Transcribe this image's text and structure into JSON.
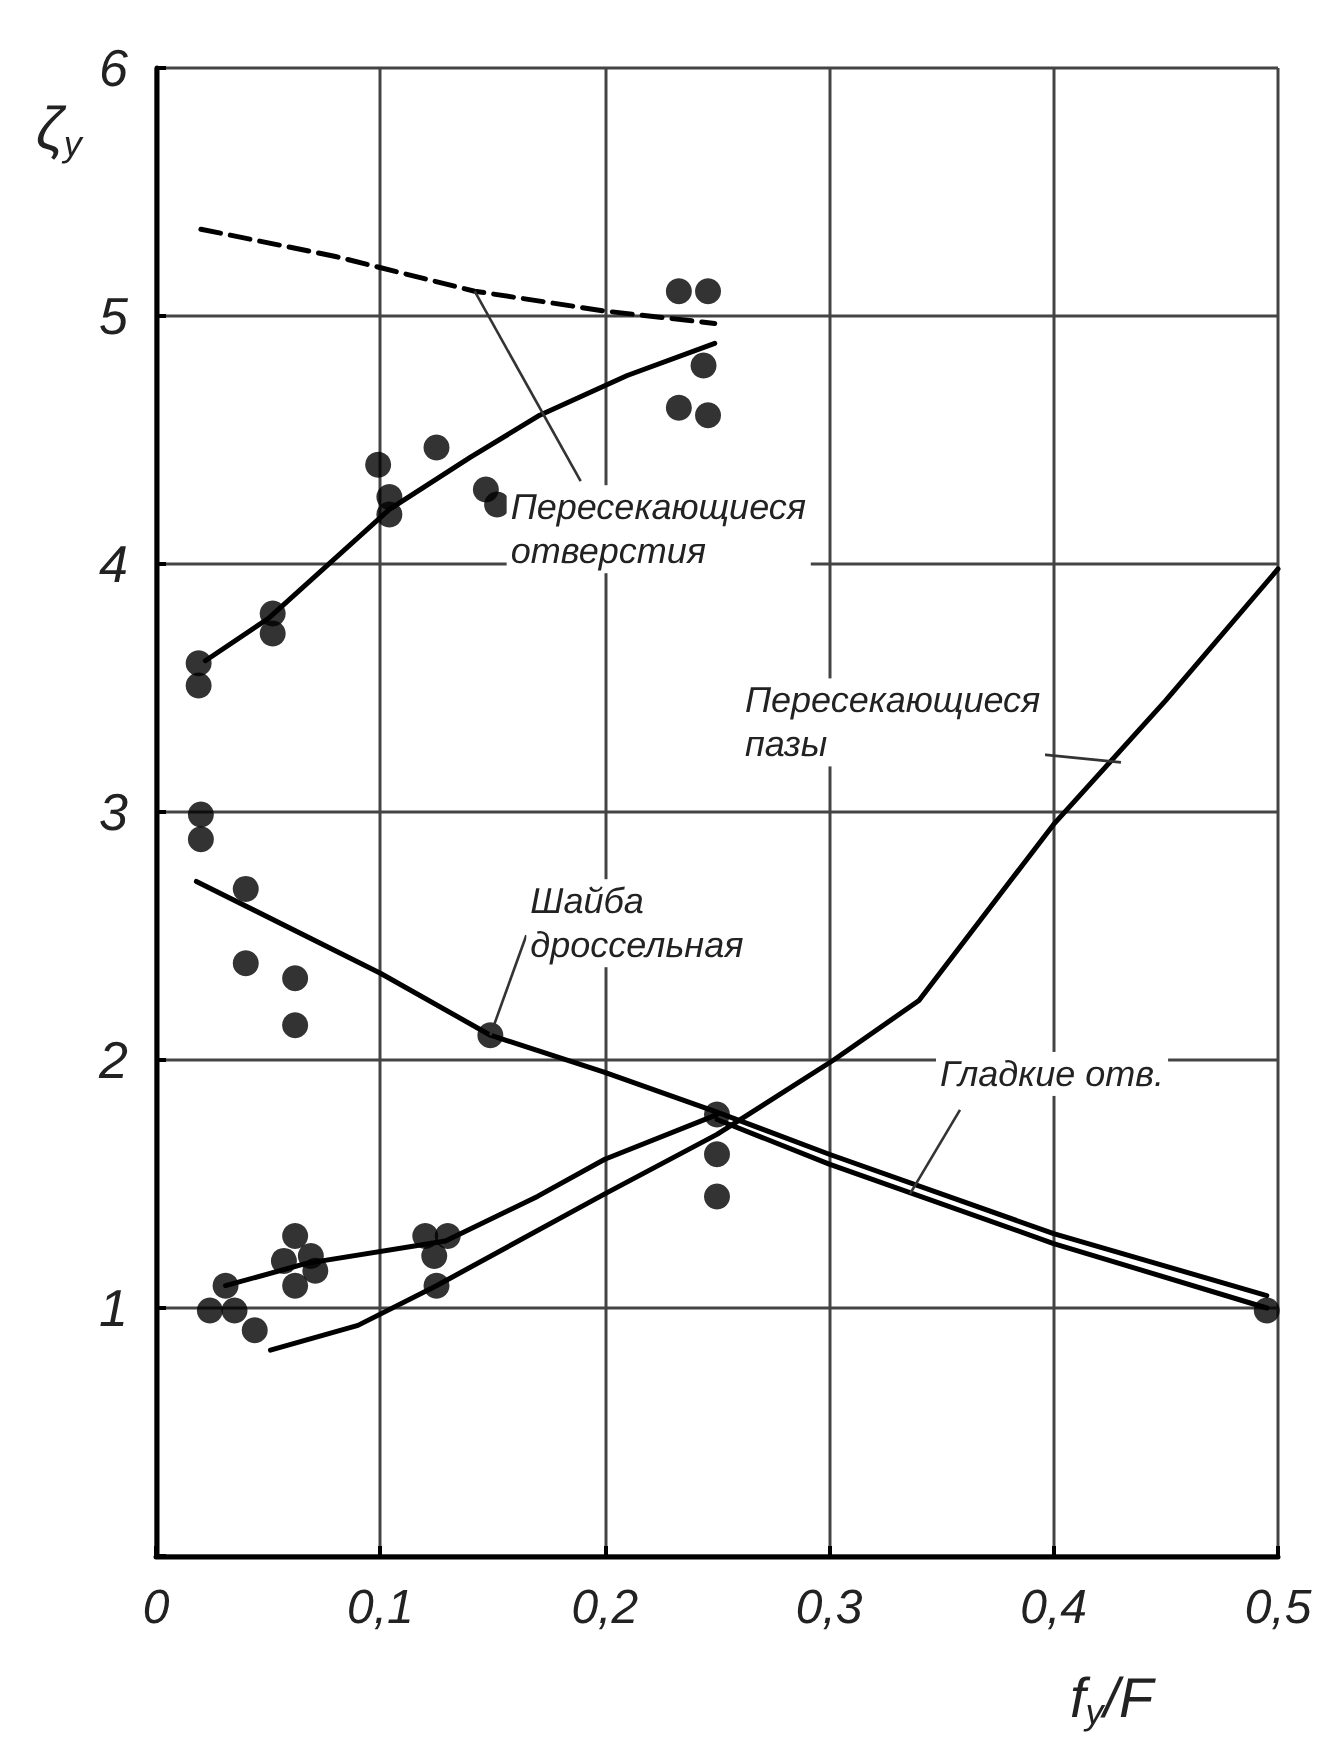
{
  "chart_data": {
    "type": "line",
    "xlabel": "f$_{y}$/F",
    "ylabel": "ζ$_{y}$",
    "xlim": [
      0,
      0.5
    ],
    "ylim": [
      0,
      6
    ],
    "xticks": [
      {
        "value": 0,
        "label": "0"
      },
      {
        "value": 0.1,
        "label": "0,1"
      },
      {
        "value": 0.2,
        "label": "0,2"
      },
      {
        "value": 0.3,
        "label": "0,3"
      },
      {
        "value": 0.4,
        "label": "0,4"
      },
      {
        "value": 0.5,
        "label": "0,5"
      }
    ],
    "yticks": [
      {
        "value": 0,
        "label": null
      },
      1,
      2,
      3,
      4,
      5,
      6
    ],
    "grid": true,
    "series": [
      {
        "type": "scatter",
        "marker": "circle",
        "color": "#000000",
        "x": [
          0.019,
          0.019,
          0.052,
          0.052,
          0.099,
          0.104,
          0.104,
          0.125,
          0.147,
          0.152,
          0.233,
          0.246,
          0.244,
          0.233,
          0.246,
          0.02,
          0.02,
          0.04,
          0.04,
          0.062,
          0.062,
          0.149,
          0.25,
          0.25,
          0.25,
          0.024,
          0.031,
          0.035,
          0.044,
          0.062,
          0.057,
          0.069,
          0.062,
          0.071,
          0.12,
          0.13,
          0.124,
          0.125,
          0.495
        ],
        "values": [
          3.6,
          3.51,
          3.8,
          3.72,
          4.4,
          4.27,
          4.2,
          4.47,
          4.3,
          4.24,
          5.1,
          5.1,
          4.8,
          4.63,
          4.6,
          2.99,
          2.89,
          2.69,
          2.39,
          2.33,
          2.14,
          2.1,
          1.78,
          1.62,
          1.45,
          0.99,
          1.09,
          0.99,
          0.91,
          1.29,
          1.19,
          1.21,
          1.09,
          1.15,
          1.29,
          1.29,
          1.21,
          1.09,
          0.99
        ]
      },
      {
        "line_style": "solid",
        "color": "#000000",
        "x": [
          0.022,
          0.05,
          0.104,
          0.14,
          0.171,
          0.21,
          0.249
        ],
        "values": [
          3.61,
          3.78,
          4.22,
          4.43,
          4.6,
          4.76,
          4.89
        ]
      },
      {
        "line_style": "dashed",
        "color": "#000000",
        "x": [
          0.02,
          0.08,
          0.142,
          0.2,
          0.249
        ],
        "values": [
          5.35,
          5.24,
          5.1,
          5.02,
          4.97
        ]
      },
      {
        "line_style": "solid",
        "color": "#000000",
        "x": [
          0.018,
          0.1,
          0.149,
          0.2,
          0.25,
          0.3,
          0.4,
          0.495
        ],
        "values": [
          2.72,
          2.35,
          2.1,
          1.95,
          1.79,
          1.62,
          1.3,
          1.05
        ]
      },
      {
        "line_style": "solid",
        "color": "#000000",
        "x": [
          0.25,
          0.3,
          0.4,
          0.495
        ],
        "values": [
          1.76,
          1.58,
          1.26,
          1.0
        ]
      },
      {
        "line_style": "solid",
        "color": "#000000",
        "x": [
          0.031,
          0.067,
          0.129,
          0.17,
          0.2,
          0.25
        ],
        "values": [
          1.09,
          1.18,
          1.27,
          1.45,
          1.6,
          1.78
        ]
      },
      {
        "line_style": "solid",
        "color": "#000000",
        "x": [
          0.051,
          0.09,
          0.125,
          0.2,
          0.25,
          0.302,
          0.34,
          0.4,
          0.45,
          0.5
        ],
        "values": [
          0.83,
          0.93,
          1.09,
          1.46,
          1.7,
          2.0,
          2.24,
          2.95,
          3.45,
          3.98
        ]
      }
    ],
    "annotations": [
      {
        "text": "Пересекающиеся\nотверстия",
        "x": 0.142,
        "y": 5.1
      },
      {
        "text": "Пересекающиеся\nпазы",
        "x": 0.43,
        "y": 3.2
      },
      {
        "text": "Шайба\nдроссельная",
        "x": 0.149,
        "y": 2.1
      },
      {
        "text": "Гладкие отв.",
        "x": 0.336,
        "y": 1.46
      }
    ]
  }
}
